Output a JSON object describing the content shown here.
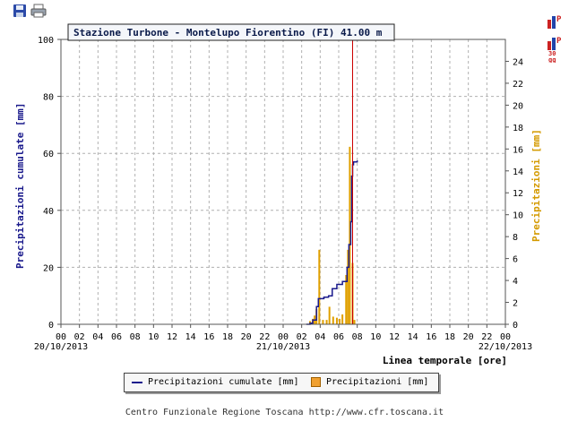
{
  "toolbar": {
    "save_icon": "floppy-disk-icon",
    "print_icon": "printer-icon"
  },
  "side_icons": {
    "top": "bar-chart-p-icon",
    "bottom": "bar-chart-p-30gg-icon",
    "bottom_text": "30\ngg"
  },
  "colors": {
    "cumulative": "#1a1a8c",
    "rain_bar": "#e0a000",
    "now_line": "#cc0000",
    "grid": "#b0b0b0",
    "title_border": "#222222"
  },
  "chart_data": {
    "type": "bar+line",
    "title": "Stazione Turbone - Montelupo Fiorentino (FI) 41.00 m",
    "ylabel_left": "Precipitazioni cumulate [mm]",
    "ylabel_right": "Precipitazioni [mm]",
    "xlabel": "Linea temporale [ore]",
    "x_range_hours": [
      0,
      48
    ],
    "y_left_range": [
      0,
      100
    ],
    "y_left_ticks": [
      0,
      20,
      40,
      60,
      80,
      100
    ],
    "y_right_range": [
      0,
      26
    ],
    "y_right_ticks": [
      0,
      2,
      4,
      6,
      8,
      10,
      12,
      14,
      16,
      18,
      20,
      22,
      24
    ],
    "x_tick_labels": [
      "00",
      "02",
      "04",
      "06",
      "08",
      "10",
      "12",
      "14",
      "16",
      "18",
      "20",
      "22",
      "00",
      "02",
      "04",
      "06",
      "08",
      "10",
      "12",
      "14",
      "16",
      "18",
      "20",
      "22",
      "00"
    ],
    "date_labels": [
      {
        "hour": 0,
        "text": "20/10/2013"
      },
      {
        "hour": 24,
        "text": "21/10/2013"
      },
      {
        "hour": 48,
        "text": "22/10/2013"
      }
    ],
    "grid": true,
    "now_marker_hour": 31.5,
    "series": [
      {
        "name": "Precipitazioni cumulate [mm]",
        "axis": "left",
        "type": "step-line",
        "points": [
          [
            26.5,
            0
          ],
          [
            26.9,
            0.4
          ],
          [
            27.2,
            1.5
          ],
          [
            27.6,
            6.2
          ],
          [
            27.8,
            9
          ],
          [
            28.4,
            9.5
          ],
          [
            28.9,
            10
          ],
          [
            29.3,
            12.5
          ],
          [
            29.8,
            14
          ],
          [
            30.4,
            15
          ],
          [
            30.9,
            20
          ],
          [
            31.1,
            28
          ],
          [
            31.3,
            36
          ],
          [
            31.4,
            52
          ],
          [
            31.5,
            56
          ],
          [
            31.6,
            57
          ],
          [
            32.0,
            57.5
          ]
        ]
      },
      {
        "name": "Precipitazioni [mm]",
        "axis": "right",
        "type": "bar",
        "points": [
          [
            26.9,
            0.3
          ],
          [
            27.2,
            0.5
          ],
          [
            27.4,
            0.8
          ],
          [
            27.6,
            1.4
          ],
          [
            27.9,
            6.8
          ],
          [
            28.3,
            0.4
          ],
          [
            28.7,
            0.4
          ],
          [
            29.0,
            1.6
          ],
          [
            29.4,
            0.7
          ],
          [
            29.8,
            0.6
          ],
          [
            30.1,
            0.5
          ],
          [
            30.4,
            0.9
          ],
          [
            30.8,
            4.5
          ],
          [
            31.0,
            6.8
          ],
          [
            31.2,
            16.2
          ],
          [
            31.5,
            5.6
          ],
          [
            31.7,
            0.4
          ]
        ]
      }
    ]
  },
  "legend": {
    "cumulative_label": "Precipitazioni cumulate [mm]",
    "rain_label": "Precipitazioni [mm]"
  },
  "footer": "Centro Funzionale Regione Toscana http://www.cfr.toscana.it"
}
